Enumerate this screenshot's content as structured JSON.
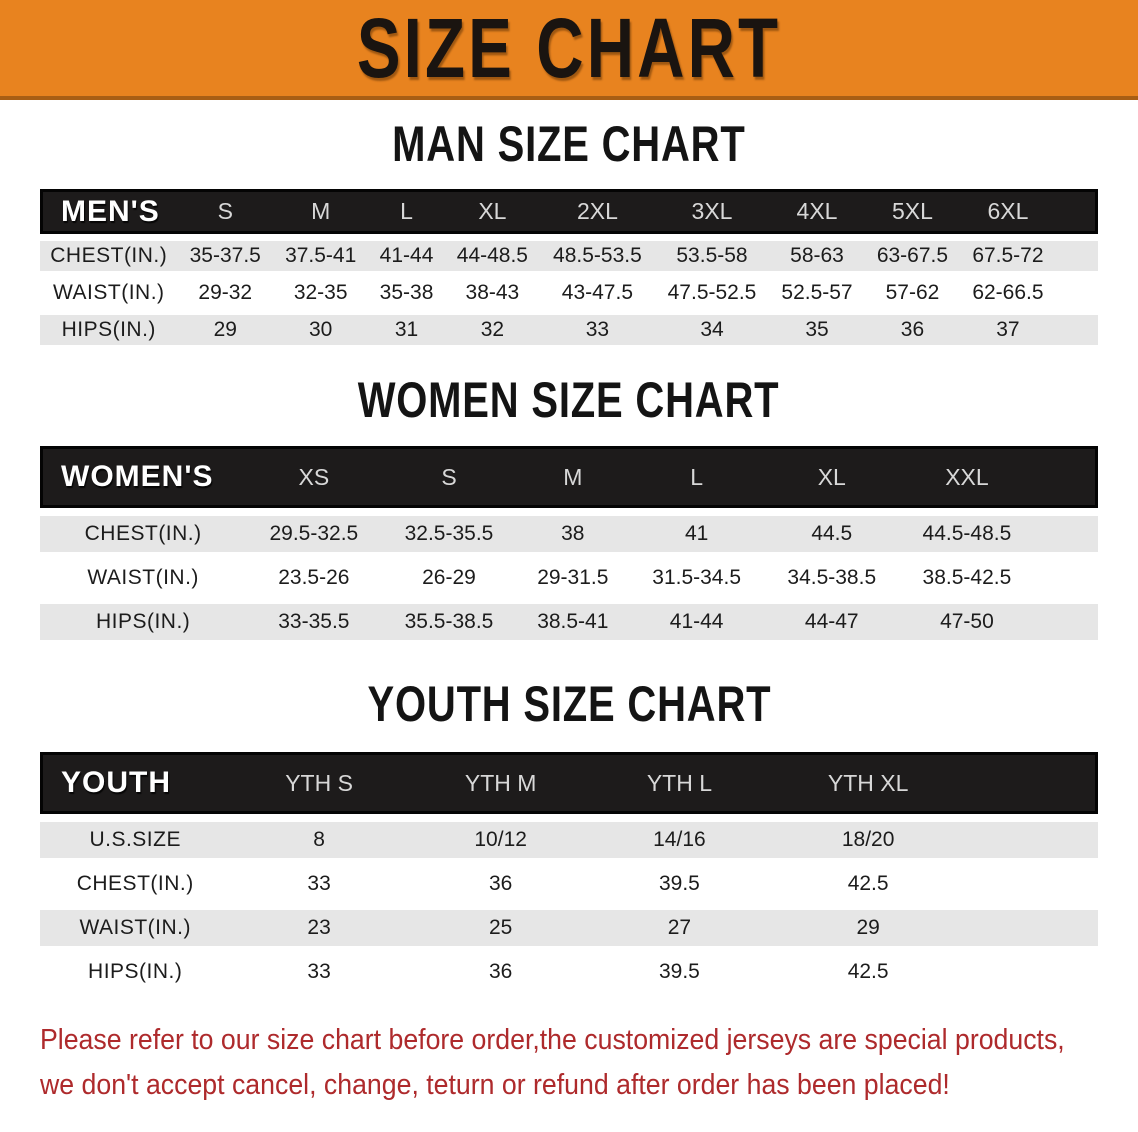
{
  "banner": {
    "title": "SIZE CHART",
    "bg_color": "#E8831F",
    "text_color": "#1a1410"
  },
  "sections": [
    {
      "heading": "MAN SIZE CHART",
      "label": "MEN'S",
      "columns": [
        "S",
        "M",
        "L",
        "XL",
        "2XL",
        "3XL",
        "4XL",
        "5XL",
        "6XL"
      ],
      "rows": [
        {
          "label": "CHEST(IN.)",
          "values": [
            "35-37.5",
            "37.5-41",
            "41-44",
            "44-48.5",
            "48.5-53.5",
            "53.5-58",
            "58-63",
            "63-67.5",
            "67.5-72"
          ]
        },
        {
          "label": "WAIST(IN.)",
          "values": [
            "29-32",
            "32-35",
            "35-38",
            "38-43",
            "43-47.5",
            "47.5-52.5",
            "52.5-57",
            "57-62",
            "62-66.5"
          ]
        },
        {
          "label": "HIPS(IN.)",
          "values": [
            "29",
            "30",
            "31",
            "32",
            "33",
            "34",
            "35",
            "36",
            "37"
          ]
        }
      ]
    },
    {
      "heading": "WOMEN SIZE CHART",
      "label": "WOMEN'S",
      "columns": [
        "XS",
        "S",
        "M",
        "L",
        "XL",
        "XXL"
      ],
      "rows": [
        {
          "label": "CHEST(IN.)",
          "values": [
            "29.5-32.5",
            "32.5-35.5",
            "38",
            "41",
            "44.5",
            "44.5-48.5"
          ]
        },
        {
          "label": "WAIST(IN.)",
          "values": [
            "23.5-26",
            "26-29",
            "29-31.5",
            "31.5-34.5",
            "34.5-38.5",
            "38.5-42.5"
          ]
        },
        {
          "label": "HIPS(IN.)",
          "values": [
            "33-35.5",
            "35.5-38.5",
            "38.5-41",
            "41-44",
            "44-47",
            "47-50"
          ]
        }
      ]
    },
    {
      "heading": "YOUTH SIZE CHART",
      "label": "YOUTH",
      "columns": [
        "YTH S",
        "YTH M",
        "YTH L",
        "YTH XL"
      ],
      "rows": [
        {
          "label": "U.S.SIZE",
          "values": [
            "8",
            "10/12",
            "14/16",
            "18/20"
          ]
        },
        {
          "label": "CHEST(IN.)",
          "values": [
            "33",
            "36",
            "39.5",
            "42.5"
          ]
        },
        {
          "label": "WAIST(IN.)",
          "values": [
            "23",
            "25",
            "27",
            "29"
          ]
        },
        {
          "label": "HIPS(IN.)",
          "values": [
            "33",
            "36",
            "39.5",
            "42.5"
          ]
        }
      ]
    }
  ],
  "notice": {
    "line1": "Please refer to our size chart before order,the customized jerseys are special products,",
    "line2": "we don't accept cancel, change, teturn or refund after order has been placed!",
    "color": "#ae2a2c"
  },
  "colors": {
    "banner_orange": "#E8831F",
    "header_black": "#1d1b1b",
    "row_gray": "#e6e6e6",
    "notice_red": "#ae2a2c"
  }
}
